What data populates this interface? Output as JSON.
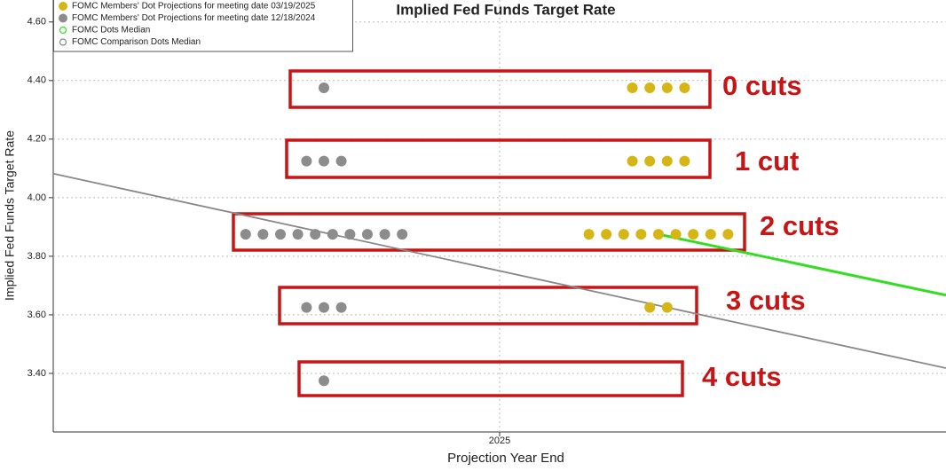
{
  "chart_data": {
    "type": "scatter",
    "title": "Implied Fed Funds Target Rate",
    "x_label": "Projection Year End",
    "y_label": "Implied Fed Funds Target Rate",
    "xlim": [
      2024,
      2026
    ],
    "xticks": [
      2025
    ],
    "ylim": [
      3.2,
      4.675
    ],
    "yticks": [
      {
        "value": 3.4,
        "label": "3.40"
      },
      {
        "value": 3.6,
        "label": "3.60"
      },
      {
        "value": 3.8,
        "label": "3.80"
      },
      {
        "value": 4.0,
        "label": "4.00"
      },
      {
        "value": 4.2,
        "label": "4.20"
      },
      {
        "value": 4.4,
        "label": "4.40"
      },
      {
        "value": 4.6,
        "label": "4.60"
      }
    ],
    "grid": true,
    "legend": "top-left",
    "series": [
      {
        "name": "FOMC Members' Dot Projections for meeting date 03/19/2025",
        "color": "#d6b616",
        "kind": "dots",
        "values": [
          4.375,
          4.375,
          4.375,
          4.375,
          4.125,
          4.125,
          4.125,
          4.125,
          3.875,
          3.875,
          3.875,
          3.875,
          3.875,
          3.875,
          3.875,
          3.875,
          3.875,
          3.625,
          3.625
        ]
      },
      {
        "name": "FOMC Members' Dot Projections for meeting date 12/18/2024",
        "color": "#8c8c8c",
        "kind": "dots",
        "values": [
          4.375,
          4.125,
          4.125,
          4.125,
          3.875,
          3.875,
          3.875,
          3.875,
          3.875,
          3.875,
          3.875,
          3.875,
          3.875,
          3.875,
          3.625,
          3.625,
          3.625,
          3.375
        ]
      },
      {
        "name": "FOMC Dots Median",
        "color": "#33dd22",
        "kind": "line",
        "x": [
          2025.356,
          2026
        ],
        "values": [
          3.875,
          3.667
        ]
      },
      {
        "name": "FOMC Comparison Dots Median",
        "color": "#888888",
        "kind": "line",
        "x": [
          2024,
          2026
        ],
        "values": [
          4.082,
          3.418
        ]
      }
    ],
    "annotations": [
      "0 cuts",
      "1 cut",
      "2 cuts",
      "3 cuts",
      "4 cuts"
    ]
  }
}
